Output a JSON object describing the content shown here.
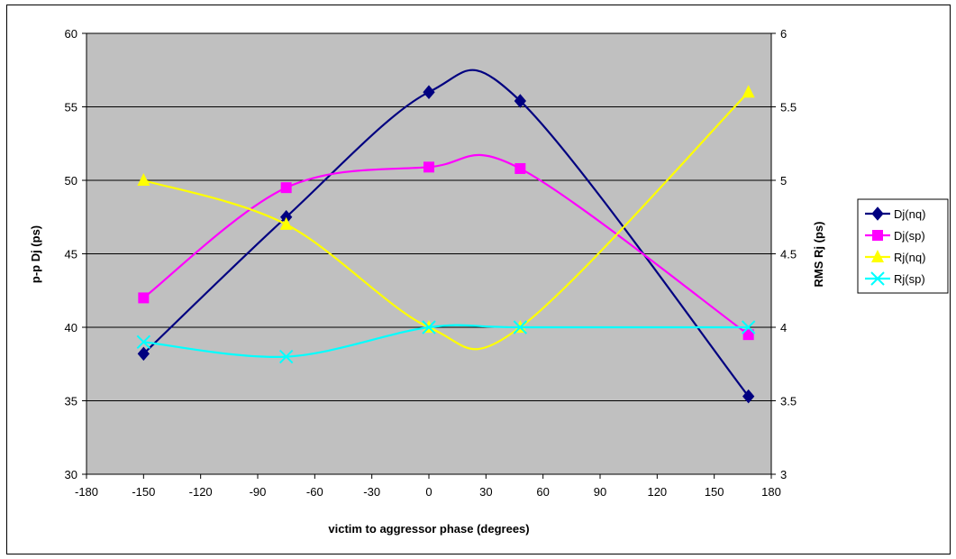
{
  "chart_data": {
    "type": "line",
    "title": "",
    "xlabel": "victim to aggressor phase (degrees)",
    "ylabel_left": "p-p Dj (ps)",
    "ylabel_right": "RMS Rj (ps)",
    "xlim": [
      -180,
      180
    ],
    "ylim_left": [
      30,
      60
    ],
    "ylim_right": [
      3,
      6
    ],
    "x_ticks": [
      -180,
      -150,
      -120,
      -90,
      -60,
      -30,
      0,
      30,
      60,
      90,
      120,
      150,
      180
    ],
    "y_left_ticks": [
      30,
      35,
      40,
      45,
      50,
      55,
      60
    ],
    "y_right_ticks": [
      "3",
      "3.5",
      "4",
      "4.5",
      "5",
      "5.5",
      "6"
    ],
    "grid": "horizontal",
    "plot_background": "#C0C0C0",
    "legend_position": "right",
    "series": [
      {
        "name": "Dj(nq)",
        "axis": "left",
        "color": "#000080",
        "marker": "diamond",
        "x": [
          -150,
          -75,
          0,
          48,
          168
        ],
        "y": [
          38.2,
          47.5,
          56,
          55.4,
          35.3
        ]
      },
      {
        "name": "Dj(sp)",
        "axis": "left",
        "color": "#FF00FF",
        "marker": "square",
        "x": [
          -150,
          -75,
          0,
          48,
          168
        ],
        "y": [
          42,
          49.5,
          50.9,
          50.8,
          39.5
        ]
      },
      {
        "name": "Rj(nq)",
        "axis": "right",
        "color": "#FFFF00",
        "marker": "triangle",
        "x": [
          -150,
          -75,
          0,
          48,
          168
        ],
        "y": [
          5.0,
          4.7,
          4.0,
          4.0,
          5.6
        ]
      },
      {
        "name": "Rj(sp)",
        "axis": "right",
        "color": "#00FFFF",
        "marker": "x",
        "x": [
          -150,
          -75,
          0,
          48,
          168
        ],
        "y": [
          3.9,
          3.8,
          4.0,
          4.0,
          4.0
        ]
      }
    ]
  }
}
